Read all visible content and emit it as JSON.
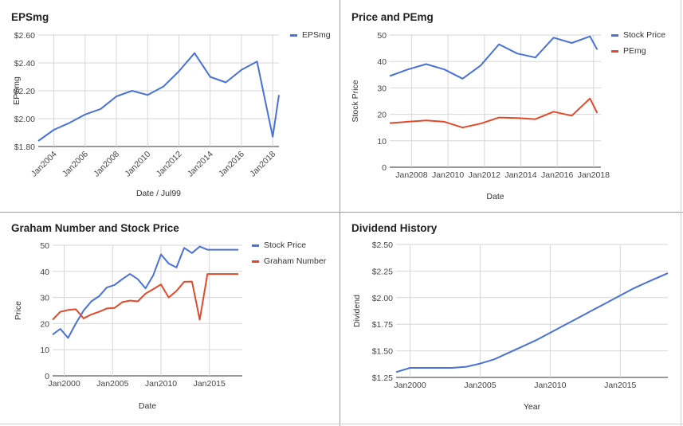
{
  "colors": {
    "blue": "#4a72d6",
    "red": "#e2492b",
    "grid": "#d6d6d6",
    "axis": "#333333"
  },
  "chart_data": [
    {
      "type": "line",
      "title": "EPSmg",
      "xlabel": "Date / Jul99",
      "ylabel": "EPSmg",
      "ylim": [
        1.8,
        2.6
      ],
      "yticks": [
        1.8,
        2.0,
        2.2,
        2.4,
        2.6
      ],
      "ytick_labels": [
        "$1.80",
        "$2.00",
        "$2.20",
        "$2.40",
        "$2.60"
      ],
      "xlim": [
        2003.0,
        2018.4
      ],
      "xticks": [
        2004,
        2006,
        2008,
        2010,
        2012,
        2014,
        2016,
        2018
      ],
      "xtick_labels": [
        "Jan2004",
        "Jan2006",
        "Jan2008",
        "Jan2010",
        "Jan2012",
        "Jan2014",
        "Jan2016",
        "Jan2018"
      ],
      "xtick_rotate": true,
      "legend_position": "top-right",
      "series": [
        {
          "name": "EPSmg",
          "color": "#4a72d6",
          "x": [
            2003.0,
            2004.0,
            2005.0,
            2006.0,
            2007.0,
            2008.0,
            2009.0,
            2010.0,
            2011.0,
            2012.0,
            2013.0,
            2014.0,
            2015.0,
            2016.0,
            2017.0,
            2018.0,
            2018.4
          ],
          "y": [
            1.84,
            1.92,
            1.97,
            2.03,
            2.07,
            2.16,
            2.2,
            2.17,
            2.23,
            2.34,
            2.47,
            2.3,
            2.26,
            2.35,
            2.41,
            1.87,
            2.17
          ]
        }
      ]
    },
    {
      "type": "line",
      "title": "Price and PEmg",
      "xlabel": "Date",
      "ylabel": "Stock Price",
      "ylim": [
        0,
        50
      ],
      "yticks": [
        0,
        10,
        20,
        30,
        40,
        50
      ],
      "ytick_labels": [
        "0",
        "10",
        "20",
        "30",
        "40",
        "50"
      ],
      "xlim": [
        2006.8,
        2018.4
      ],
      "xticks": [
        2008,
        2010,
        2012,
        2014,
        2016,
        2018
      ],
      "xtick_labels": [
        "Jan2008",
        "Jan2010",
        "Jan2012",
        "Jan2014",
        "Jan2016",
        "Jan2018"
      ],
      "xtick_rotate": false,
      "legend_position": "top-right",
      "series": [
        {
          "name": "Stock Price",
          "color": "#4a72d6",
          "x": [
            2006.8,
            2007.8,
            2008.8,
            2009.8,
            2010.8,
            2011.8,
            2012.8,
            2013.8,
            2014.8,
            2015.8,
            2016.8,
            2017.8,
            2018.2
          ],
          "y": [
            34.5,
            37,
            39,
            37,
            33.5,
            38.5,
            46.5,
            43,
            41.5,
            49,
            47,
            49.5,
            44.5
          ]
        },
        {
          "name": "PEmg",
          "color": "#e2492b",
          "x": [
            2006.8,
            2007.8,
            2008.8,
            2009.8,
            2010.8,
            2011.8,
            2012.8,
            2013.8,
            2014.8,
            2015.8,
            2016.8,
            2017.8,
            2018.2
          ],
          "y": [
            16.7,
            17.2,
            17.7,
            17.2,
            15,
            16.5,
            18.8,
            18.6,
            18.2,
            21,
            19.5,
            26,
            20.5
          ]
        }
      ]
    },
    {
      "type": "line",
      "title": "Graham Number and Stock Price",
      "xlabel": "Date",
      "ylabel": "Price",
      "ylim": [
        0,
        50
      ],
      "yticks": [
        0,
        10,
        20,
        30,
        40,
        50
      ],
      "ytick_labels": [
        "0",
        "10",
        "20",
        "30",
        "40",
        "50"
      ],
      "xlim": [
        1998.8,
        2018.4
      ],
      "xticks": [
        2000,
        2005,
        2010,
        2015
      ],
      "xtick_labels": [
        "Jan2000",
        "Jan2005",
        "Jan2010",
        "Jan2015"
      ],
      "xtick_rotate": false,
      "legend_position": "top-right",
      "series": [
        {
          "name": "Stock Price",
          "color": "#4a72d6",
          "x": [
            1998.8,
            1999.6,
            2000.4,
            2001.2,
            2002.0,
            2002.8,
            2003.6,
            2004.4,
            2005.2,
            2006.0,
            2006.8,
            2007.6,
            2008.4,
            2009.2,
            2010.0,
            2010.8,
            2011.6,
            2012.4,
            2013.2,
            2014.0,
            2014.8,
            2015.6,
            2016.4,
            2017.2,
            2018.0
          ],
          "y": [
            15.8,
            18,
            14.5,
            20,
            25,
            28.5,
            30.5,
            33.8,
            34.8,
            37,
            39,
            37,
            33.5,
            38.5,
            46.5,
            43,
            41.5,
            49,
            47,
            49.5,
            48.3,
            48.3,
            48.3,
            48.3,
            48.3
          ]
        },
        {
          "name": "Graham Number",
          "color": "#e2492b",
          "x": [
            1998.8,
            1999.6,
            2000.4,
            2001.2,
            2002.0,
            2002.8,
            2003.6,
            2004.4,
            2005.2,
            2006.0,
            2006.8,
            2007.6,
            2008.4,
            2009.2,
            2010.0,
            2010.8,
            2011.6,
            2012.4,
            2013.2,
            2014.0,
            2014.8,
            2015.6,
            2016.4,
            2017.2,
            2018.0
          ],
          "y": [
            21.5,
            24.5,
            25.2,
            25.5,
            22,
            23.5,
            24.5,
            25.8,
            26,
            28.2,
            28.8,
            28.5,
            31.5,
            33.2,
            35,
            30,
            32.5,
            36,
            36.1,
            21.5,
            39,
            39,
            39,
            39,
            39
          ]
        }
      ]
    },
    {
      "type": "line",
      "title": "Dividend History",
      "xlabel": "Year",
      "ylabel": "Dividend",
      "ylim": [
        1.25,
        2.5
      ],
      "yticks": [
        1.25,
        1.5,
        1.75,
        2.0,
        2.25,
        2.5
      ],
      "ytick_labels": [
        "$1.25",
        "$1.50",
        "$1.75",
        "$2.00",
        "$2.25",
        "$2.50"
      ],
      "xlim": [
        1999.0,
        2018.4
      ],
      "xticks": [
        2000,
        2005,
        2010,
        2015
      ],
      "xtick_labels": [
        "Jan2000",
        "Jan2005",
        "Jan2010",
        "Jan2015"
      ],
      "xtick_rotate": false,
      "legend_position": "none",
      "series": [
        {
          "name": "",
          "color": "#4a72d6",
          "x": [
            1999.0,
            2000.0,
            2001.0,
            2002.0,
            2003.0,
            2004.0,
            2005.0,
            2006.0,
            2007.0,
            2008.0,
            2009.0,
            2010.0,
            2011.0,
            2012.0,
            2013.0,
            2014.0,
            2015.0,
            2016.0,
            2017.0,
            2018.4
          ],
          "y": [
            1.3,
            1.34,
            1.34,
            1.34,
            1.34,
            1.35,
            1.38,
            1.42,
            1.48,
            1.54,
            1.6,
            1.67,
            1.74,
            1.81,
            1.88,
            1.95,
            2.02,
            2.09,
            2.15,
            2.23
          ]
        }
      ]
    }
  ]
}
